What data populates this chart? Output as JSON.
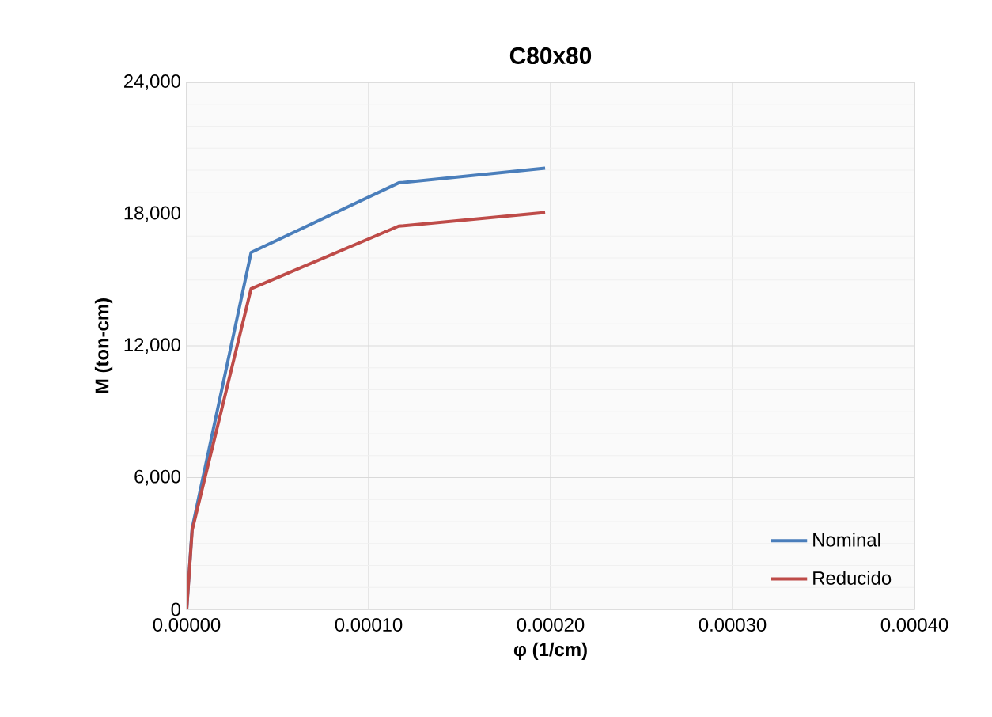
{
  "chart_data": {
    "type": "line",
    "title": "C80x80",
    "xlabel": "φ (1/cm)",
    "ylabel": "M (ton-cm)",
    "xlim": [
      0,
      0.0004
    ],
    "ylim": [
      0,
      24000
    ],
    "xticks": [
      {
        "value": 0,
        "label": "0.00000"
      },
      {
        "value": 0.0001,
        "label": "0.00010"
      },
      {
        "value": 0.0002,
        "label": "0.00020"
      },
      {
        "value": 0.0003,
        "label": "0.00030"
      },
      {
        "value": 0.0004,
        "label": "0.00040"
      }
    ],
    "yticks": [
      {
        "value": 0,
        "label": "0"
      },
      {
        "value": 6000,
        "label": "6,000"
      },
      {
        "value": 12000,
        "label": "12,000"
      },
      {
        "value": 18000,
        "label": "18,000"
      },
      {
        "value": 24000,
        "label": "24,000"
      }
    ],
    "grid": true,
    "legend": "bottom right",
    "marker": "none",
    "line_style": "solid",
    "series": [
      {
        "name": "Nominal",
        "color": "#4a7ebb",
        "x": [
          0,
          3e-06,
          3.54e-05,
          0.0001165,
          0.000197
        ],
        "values": [
          0,
          3700,
          16250,
          19420,
          20090
        ]
      },
      {
        "name": "Reducido",
        "color": "#be4b48",
        "x": [
          0,
          3e-06,
          3.54e-05,
          0.0001165,
          0.000197
        ],
        "values": [
          0,
          3600,
          14600,
          17450,
          18070
        ]
      }
    ]
  }
}
